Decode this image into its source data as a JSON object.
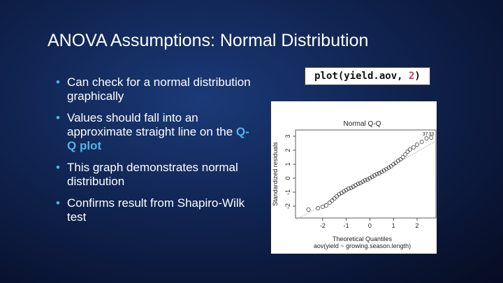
{
  "slide": {
    "title": "ANOVA Assumptions: Normal Distribution",
    "bullets": [
      {
        "parts": [
          "Can check for a normal distribution graphically"
        ]
      },
      {
        "parts": [
          "Values should fall into an approximate straight line on the ",
          "Q-Q plot"
        ]
      },
      {
        "parts": [
          "This graph demonstrates normal distribution"
        ]
      },
      {
        "parts": [
          "Confirms result from Shapiro-Wilk test"
        ]
      }
    ],
    "code": {
      "call": "plot(yield.aov, ",
      "arg": "2",
      "close": ")"
    }
  },
  "chart_data": {
    "type": "scatter",
    "title": "Normal Q-Q",
    "x_label": "Theoretical Quantiles",
    "y_label": "Standardized residuals",
    "subtitle": "aov(yield ~ growing.season.length)",
    "x": [
      -2.6,
      -2.2,
      -2.0,
      -1.85,
      -1.7,
      -1.6,
      -1.5,
      -1.4,
      -1.3,
      -1.2,
      -1.1,
      -1.0,
      -0.9,
      -0.8,
      -0.7,
      -0.6,
      -0.5,
      -0.4,
      -0.3,
      -0.2,
      -0.1,
      0,
      0.1,
      0.2,
      0.3,
      0.4,
      0.5,
      0.6,
      0.7,
      0.8,
      0.9,
      1.0,
      1.1,
      1.2,
      1.3,
      1.4,
      1.5,
      1.6,
      1.7,
      1.85,
      2.0,
      2.2,
      2.4,
      2.6
    ],
    "values": [
      -2.25,
      -2.15,
      -2.05,
      -1.95,
      -1.75,
      -1.6,
      -1.45,
      -1.3,
      -1.15,
      -1.05,
      -0.95,
      -0.85,
      -0.75,
      -0.7,
      -0.6,
      -0.5,
      -0.4,
      -0.35,
      -0.25,
      -0.15,
      -0.1,
      0,
      0.1,
      0.2,
      0.3,
      0.35,
      0.45,
      0.55,
      0.65,
      0.75,
      0.85,
      1.0,
      1.1,
      1.25,
      1.35,
      1.5,
      1.7,
      1.9,
      2.05,
      2.2,
      2.4,
      2.6,
      2.85,
      2.9
    ],
    "point_labels": [
      {
        "text": "37",
        "x": 2.35,
        "y": 3.05
      },
      {
        "text": "33",
        "x": 2.6,
        "y": 3.05
      }
    ],
    "reference_line": {
      "x": [
        -3.1,
        2.8
      ],
      "y": [
        -2.95,
        2.65
      ]
    },
    "color": "#333333",
    "xlim": [
      -3.15,
      2.8
    ],
    "ylim": [
      -2.85,
      3.45
    ],
    "xticks": [
      -2,
      -1,
      0,
      1,
      2
    ],
    "yticks": [
      -2,
      -1,
      0,
      1,
      2,
      3
    ]
  }
}
